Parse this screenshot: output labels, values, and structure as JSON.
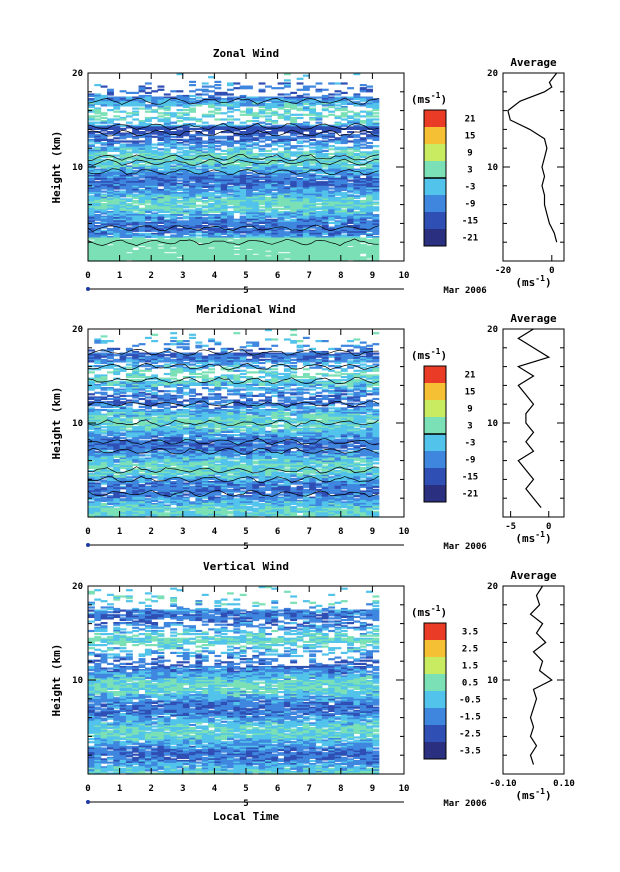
{
  "shared": {
    "x_ticks": [
      0,
      1,
      2,
      3,
      4,
      5,
      6,
      7,
      8,
      9,
      10
    ],
    "y_ticks": [
      10,
      20
    ],
    "date_marker": "5",
    "date_label": "Mar 2006",
    "xlabel": "Local Time",
    "ylabel": "Height (km)",
    "colorbar_unit": "(ms",
    "avg_unit": "(ms",
    "unit_exp": "-1",
    "avg_title": "Average"
  },
  "chart_data": [
    {
      "type": "heatmap",
      "title": "Zonal Wind",
      "xlim": [
        0,
        10
      ],
      "ylim": [
        0,
        20
      ],
      "data_extent_x": [
        0,
        9.2
      ],
      "colorbar_ticks": [
        "21",
        "15",
        "9",
        "3",
        "-3",
        "-9",
        "-15",
        "-21"
      ],
      "colorbar_range": [
        -24,
        24
      ],
      "dominant_range": [
        -9,
        3
      ],
      "profile": {
        "xlim": [
          -20,
          5
        ],
        "xticks": [
          "-20",
          "0"
        ],
        "points": [
          [
            2,
            2
          ],
          [
            1,
            3
          ],
          [
            -1,
            4
          ],
          [
            -2,
            5
          ],
          [
            -3,
            6
          ],
          [
            -3,
            7
          ],
          [
            -4,
            8
          ],
          [
            -3,
            9
          ],
          [
            -4,
            10
          ],
          [
            -3,
            11
          ],
          [
            -2,
            12
          ],
          [
            -3,
            13
          ],
          [
            -9,
            14
          ],
          [
            -17,
            15
          ],
          [
            -18,
            16
          ],
          [
            -13,
            17
          ],
          [
            -3,
            18
          ],
          [
            0,
            18.5
          ],
          [
            -1,
            19
          ],
          [
            2,
            20
          ]
        ]
      }
    },
    {
      "type": "heatmap",
      "title": "Meridional Wind",
      "xlim": [
        0,
        10
      ],
      "ylim": [
        0,
        20
      ],
      "data_extent_x": [
        0,
        9.2
      ],
      "colorbar_ticks": [
        "21",
        "15",
        "9",
        "3",
        "-3",
        "-9",
        "-15",
        "-21"
      ],
      "colorbar_range": [
        -24,
        24
      ],
      "dominant_range": [
        -9,
        3
      ],
      "profile": {
        "xlim": [
          -6,
          2
        ],
        "xticks": [
          "-5",
          "0"
        ],
        "points": [
          [
            -1,
            1
          ],
          [
            -2,
            2
          ],
          [
            -3,
            3
          ],
          [
            -2,
            4
          ],
          [
            -3,
            5
          ],
          [
            -4,
            6
          ],
          [
            -2,
            7
          ],
          [
            -3,
            8
          ],
          [
            -2,
            9
          ],
          [
            -3,
            10
          ],
          [
            -3,
            11
          ],
          [
            -2,
            12
          ],
          [
            -3,
            13
          ],
          [
            -4,
            14
          ],
          [
            -2,
            15
          ],
          [
            -4,
            16
          ],
          [
            0,
            17
          ],
          [
            -2,
            18
          ],
          [
            -4,
            19
          ],
          [
            -2,
            20
          ]
        ]
      }
    },
    {
      "type": "heatmap",
      "title": "Vertical Wind",
      "xlim": [
        0,
        10
      ],
      "ylim": [
        0,
        20
      ],
      "data_extent_x": [
        0,
        9.2
      ],
      "colorbar_ticks": [
        "3.5",
        "2.5",
        "1.5",
        "0.5",
        "-0.5",
        "-1.5",
        "-2.5",
        "-3.5"
      ],
      "colorbar_range": [
        -4,
        4
      ],
      "dominant_range": [
        -1.5,
        0.5
      ],
      "profile": {
        "xlim": [
          -0.1,
          0.1
        ],
        "xticks": [
          "-0.10",
          "0.10"
        ],
        "points": [
          [
            0,
            1
          ],
          [
            -0.01,
            2
          ],
          [
            0.01,
            3
          ],
          [
            -0.01,
            4
          ],
          [
            0,
            5
          ],
          [
            -0.01,
            6
          ],
          [
            0,
            7
          ],
          [
            0.01,
            8
          ],
          [
            0,
            9
          ],
          [
            0.06,
            10
          ],
          [
            0.02,
            11
          ],
          [
            0.03,
            12
          ],
          [
            0,
            13
          ],
          [
            0.04,
            14
          ],
          [
            0.01,
            15
          ],
          [
            0.03,
            16
          ],
          [
            -0.01,
            17
          ],
          [
            0.02,
            18
          ],
          [
            0.01,
            19
          ],
          [
            0.03,
            20
          ]
        ]
      }
    }
  ]
}
